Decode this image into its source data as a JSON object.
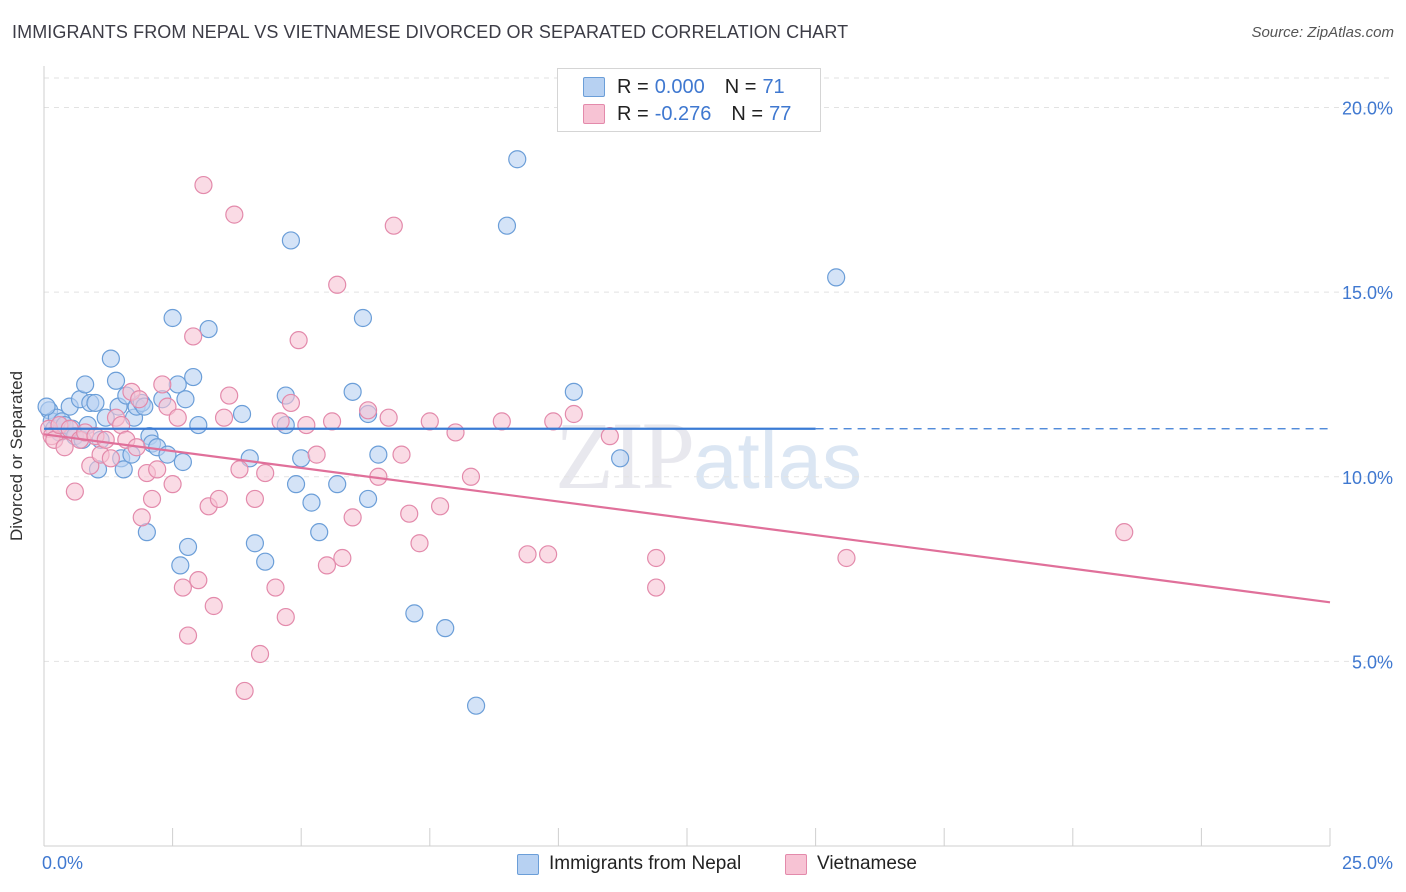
{
  "header": {
    "title": "IMMIGRANTS FROM NEPAL VS VIETNAMESE DIVORCED OR SEPARATED CORRELATION CHART",
    "source": "Source: ZipAtlas.com"
  },
  "watermark": {
    "zip": "ZIP",
    "atlas": "atlas"
  },
  "legend": {
    "series1": {
      "r_label": "R =",
      "r_value": "0.000",
      "n_label": "N =",
      "n_value": "71"
    },
    "series2": {
      "r_label": "R =",
      "r_value": "-0.276",
      "n_label": "N =",
      "n_value": "77"
    }
  },
  "bottom_legend": {
    "series1": "Immigrants from Nepal",
    "series2": "Vietnamese"
  },
  "colors": {
    "blue_fill": "#b7d1f2",
    "blue_stroke": "#6b9ed8",
    "blue_line": "#3a7bd5",
    "pink_fill": "#f7c3d4",
    "pink_stroke": "#e38aab",
    "pink_line": "#e0709a",
    "axis_text": "#3f78d0",
    "grid": "#e2e2e2"
  },
  "chart_data": {
    "type": "scatter",
    "title": "IMMIGRANTS FROM NEPAL VS VIETNAMESE DIVORCED OR SEPARATED CORRELATION CHART",
    "xlabel": "",
    "ylabel": "Divorced or Separated",
    "xlim": [
      0,
      25
    ],
    "ylim": [
      0,
      20.8
    ],
    "x_tick_labels": [
      "0.0%",
      "25.0%"
    ],
    "y_ticks": [
      5,
      10,
      15,
      20
    ],
    "y_tick_labels": [
      "5.0%",
      "10.0%",
      "15.0%",
      "20.0%"
    ],
    "grid": true,
    "legend_position": "top-center",
    "series": [
      {
        "name": "Immigrants from Nepal",
        "color": "#6b9ed8",
        "r": 0.0,
        "n": 71,
        "trend": {
          "x": [
            0,
            15
          ],
          "y": [
            11.3,
            11.3
          ],
          "dashed_to": 25
        },
        "points": [
          [
            0.1,
            11.8
          ],
          [
            0.15,
            11.5
          ],
          [
            0.2,
            11.3
          ],
          [
            0.25,
            11.6
          ],
          [
            0.3,
            11.2
          ],
          [
            0.35,
            11.5
          ],
          [
            0.4,
            11.4
          ],
          [
            0.5,
            11.9
          ],
          [
            0.55,
            11.3
          ],
          [
            0.6,
            11.1
          ],
          [
            0.7,
            12.1
          ],
          [
            0.75,
            11.0
          ],
          [
            0.8,
            12.5
          ],
          [
            0.85,
            11.4
          ],
          [
            0.9,
            12.0
          ],
          [
            1.0,
            12.0
          ],
          [
            1.05,
            10.2
          ],
          [
            1.1,
            11.0
          ],
          [
            1.2,
            11.6
          ],
          [
            1.3,
            13.2
          ],
          [
            1.4,
            12.6
          ],
          [
            1.45,
            11.9
          ],
          [
            1.5,
            10.5
          ],
          [
            1.55,
            10.2
          ],
          [
            1.6,
            12.2
          ],
          [
            1.7,
            10.6
          ],
          [
            1.75,
            11.6
          ],
          [
            1.8,
            11.9
          ],
          [
            1.9,
            12.0
          ],
          [
            1.95,
            11.9
          ],
          [
            2.0,
            8.5
          ],
          [
            2.05,
            11.1
          ],
          [
            2.1,
            10.9
          ],
          [
            2.2,
            10.8
          ],
          [
            2.3,
            12.1
          ],
          [
            2.4,
            10.6
          ],
          [
            2.5,
            14.3
          ],
          [
            2.6,
            12.5
          ],
          [
            2.65,
            7.6
          ],
          [
            2.7,
            10.4
          ],
          [
            2.75,
            12.1
          ],
          [
            2.8,
            8.1
          ],
          [
            2.9,
            12.7
          ],
          [
            3.0,
            11.4
          ],
          [
            3.2,
            14.0
          ],
          [
            3.85,
            11.7
          ],
          [
            4.0,
            10.5
          ],
          [
            4.1,
            8.2
          ],
          [
            4.3,
            7.7
          ],
          [
            4.7,
            11.4
          ],
          [
            4.7,
            12.2
          ],
          [
            4.8,
            16.4
          ],
          [
            4.9,
            9.8
          ],
          [
            5.0,
            10.5
          ],
          [
            5.2,
            9.3
          ],
          [
            5.35,
            8.5
          ],
          [
            5.7,
            9.8
          ],
          [
            6.0,
            12.3
          ],
          [
            6.2,
            14.3
          ],
          [
            6.3,
            11.7
          ],
          [
            6.3,
            9.4
          ],
          [
            6.5,
            10.6
          ],
          [
            7.2,
            6.3
          ],
          [
            7.8,
            5.9
          ],
          [
            8.4,
            3.8
          ],
          [
            9.0,
            16.8
          ],
          [
            9.2,
            18.6
          ],
          [
            10.3,
            12.3
          ],
          [
            11.2,
            10.5
          ],
          [
            15.4,
            15.4
          ],
          [
            0.05,
            11.9
          ]
        ]
      },
      {
        "name": "Vietnamese",
        "color": "#e38aab",
        "r": -0.276,
        "n": 77,
        "trend": {
          "x": [
            0,
            25
          ],
          "y": [
            11.15,
            6.6
          ]
        },
        "points": [
          [
            0.1,
            11.3
          ],
          [
            0.15,
            11.1
          ],
          [
            0.2,
            11.0
          ],
          [
            0.3,
            11.4
          ],
          [
            0.4,
            10.8
          ],
          [
            0.5,
            11.3
          ],
          [
            0.6,
            9.6
          ],
          [
            0.7,
            11.0
          ],
          [
            0.8,
            11.2
          ],
          [
            0.9,
            10.3
          ],
          [
            1.0,
            11.1
          ],
          [
            1.1,
            10.6
          ],
          [
            1.2,
            11.0
          ],
          [
            1.3,
            10.5
          ],
          [
            1.4,
            11.6
          ],
          [
            1.5,
            11.4
          ],
          [
            1.6,
            11.0
          ],
          [
            1.7,
            12.3
          ],
          [
            1.8,
            10.8
          ],
          [
            1.85,
            12.1
          ],
          [
            1.9,
            8.9
          ],
          [
            2.0,
            10.1
          ],
          [
            2.1,
            9.4
          ],
          [
            2.2,
            10.2
          ],
          [
            2.3,
            12.5
          ],
          [
            2.4,
            11.9
          ],
          [
            2.5,
            9.8
          ],
          [
            2.6,
            11.6
          ],
          [
            2.7,
            7.0
          ],
          [
            2.8,
            5.7
          ],
          [
            2.9,
            13.8
          ],
          [
            3.0,
            7.2
          ],
          [
            3.1,
            17.9
          ],
          [
            3.2,
            9.2
          ],
          [
            3.3,
            6.5
          ],
          [
            3.4,
            9.4
          ],
          [
            3.5,
            11.6
          ],
          [
            3.6,
            12.2
          ],
          [
            3.7,
            17.1
          ],
          [
            3.8,
            10.2
          ],
          [
            3.9,
            4.2
          ],
          [
            4.1,
            9.4
          ],
          [
            4.2,
            5.2
          ],
          [
            4.3,
            10.1
          ],
          [
            4.5,
            7.0
          ],
          [
            4.6,
            11.5
          ],
          [
            4.7,
            6.2
          ],
          [
            4.8,
            12.0
          ],
          [
            4.95,
            13.7
          ],
          [
            5.1,
            11.4
          ],
          [
            5.3,
            10.6
          ],
          [
            5.5,
            7.6
          ],
          [
            5.6,
            11.5
          ],
          [
            5.7,
            15.2
          ],
          [
            5.8,
            7.8
          ],
          [
            6.0,
            8.9
          ],
          [
            6.3,
            11.8
          ],
          [
            6.5,
            10.0
          ],
          [
            6.7,
            11.6
          ],
          [
            6.8,
            16.8
          ],
          [
            6.95,
            10.6
          ],
          [
            7.1,
            9.0
          ],
          [
            7.3,
            8.2
          ],
          [
            7.5,
            11.5
          ],
          [
            7.7,
            9.2
          ],
          [
            8.0,
            11.2
          ],
          [
            8.3,
            10.0
          ],
          [
            8.9,
            11.5
          ],
          [
            9.4,
            7.9
          ],
          [
            9.8,
            7.9
          ],
          [
            9.9,
            11.5
          ],
          [
            10.3,
            11.7
          ],
          [
            11.0,
            11.1
          ],
          [
            11.9,
            7.8
          ],
          [
            11.9,
            7.0
          ],
          [
            15.6,
            7.8
          ],
          [
            21.0,
            8.5
          ]
        ]
      }
    ]
  }
}
